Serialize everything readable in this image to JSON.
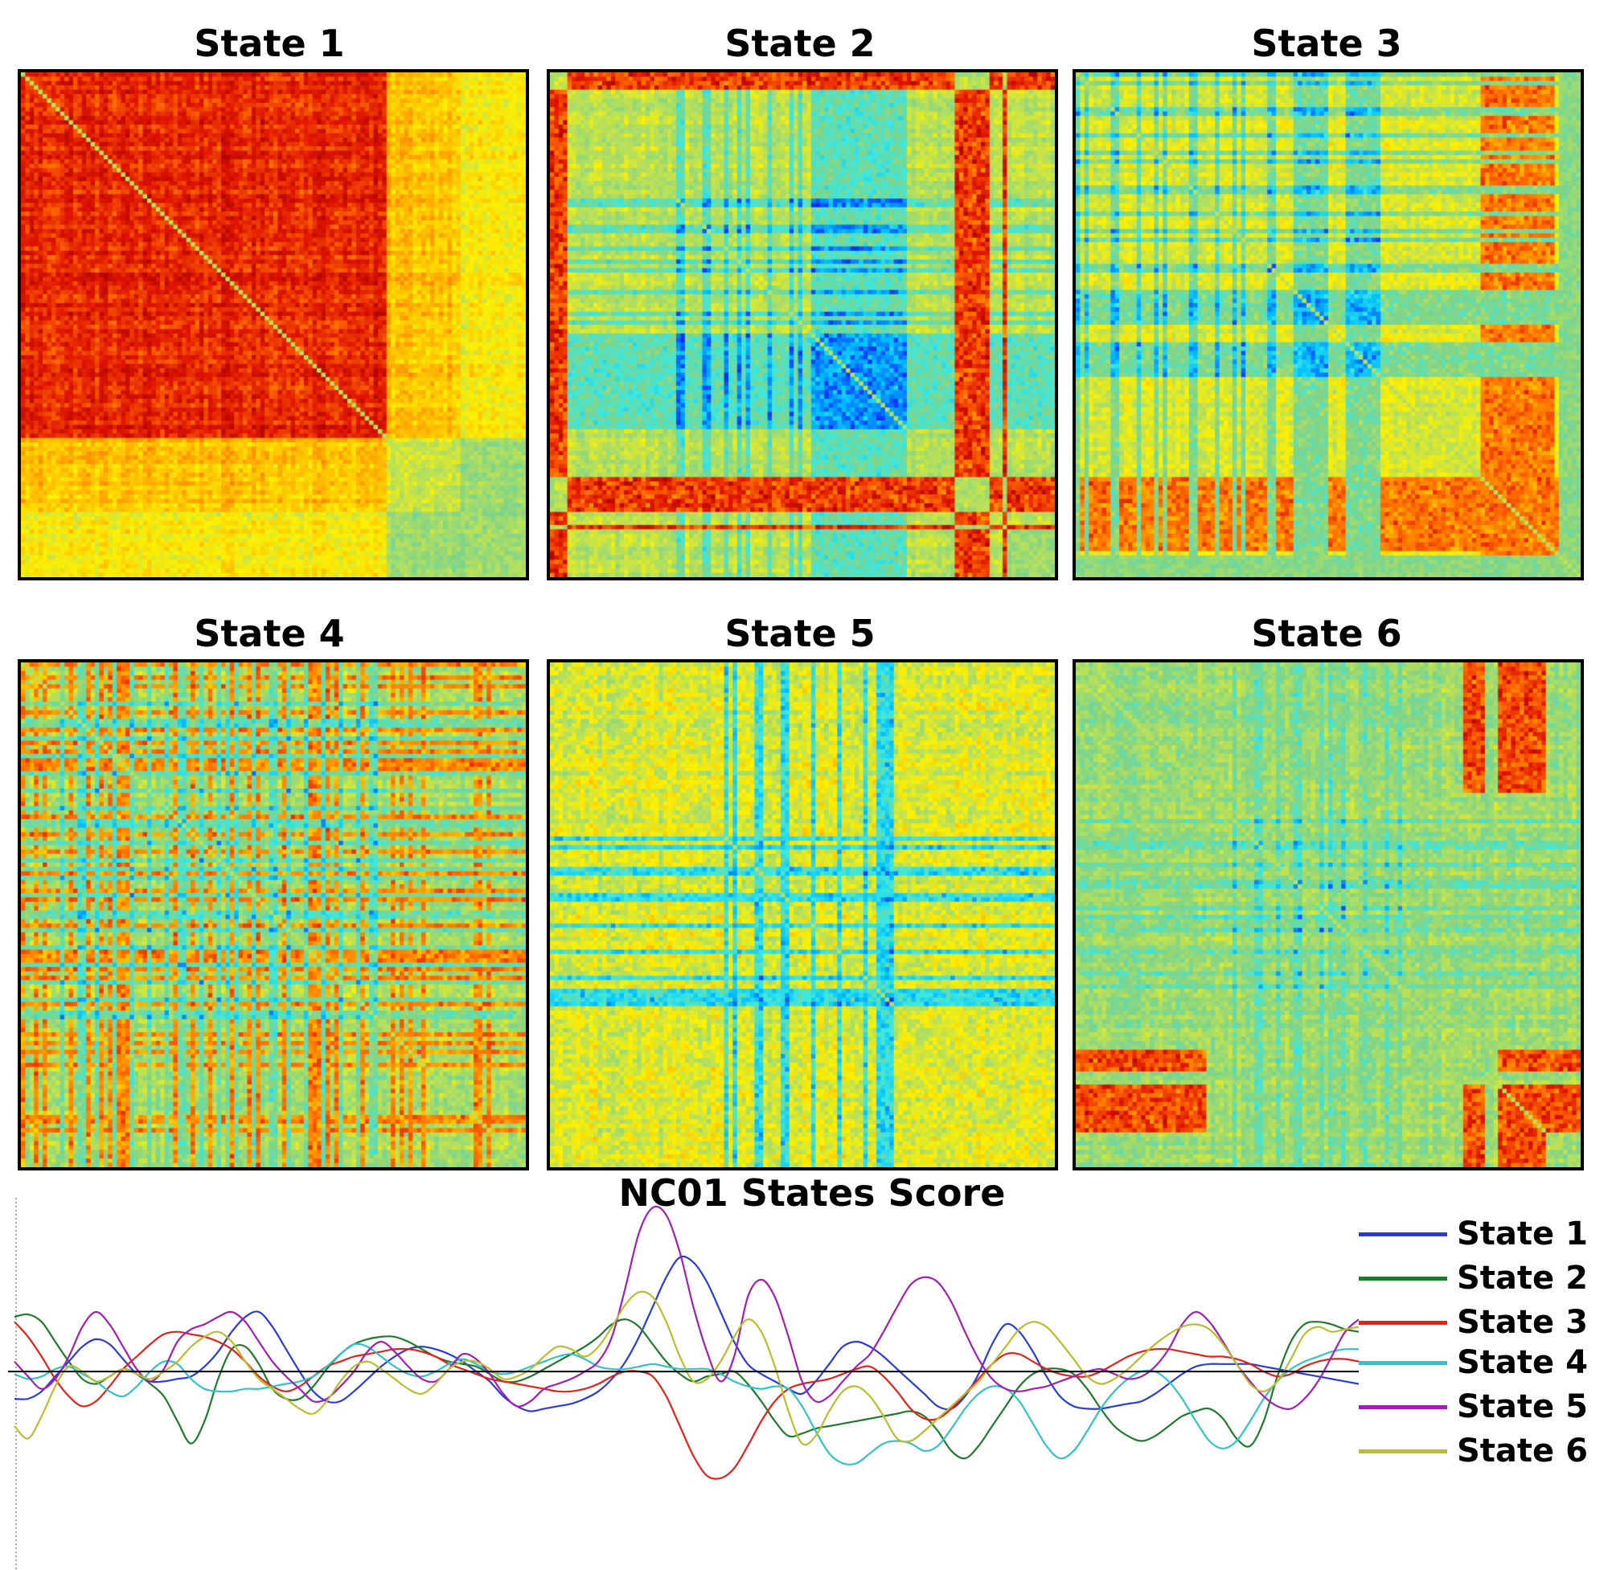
{
  "panels": [
    {
      "title": "State 1",
      "profile": "state1"
    },
    {
      "title": "State 2",
      "profile": "state2"
    },
    {
      "title": "State 3",
      "profile": "state3"
    },
    {
      "title": "State 4",
      "profile": "state4"
    },
    {
      "title": "State 5",
      "profile": "state5"
    },
    {
      "title": "State 6",
      "profile": "state6"
    }
  ],
  "colormap": {
    "stops": [
      "#0000bf",
      "#0a3cff",
      "#00bfff",
      "#3ce8e0",
      "#7fd48a",
      "#b8e05a",
      "#fff000",
      "#ffb400",
      "#ff6a00",
      "#e01400",
      "#a00000"
    ]
  },
  "chart_data": {
    "type": "line",
    "title": "NC01 States Score",
    "xlabel": "",
    "ylabel": "",
    "x_points": 100,
    "ylim": [
      -4.0,
      3.5
    ],
    "baseline": 0,
    "series": [
      {
        "name": "State 1",
        "color": "#2b3bd8",
        "values": [
          -0.55,
          -0.55,
          -0.4,
          -0.1,
          0.2,
          0.5,
          0.65,
          0.55,
          0.25,
          -0.05,
          -0.2,
          -0.2,
          -0.15,
          -0.1,
          0.1,
          0.4,
          0.8,
          1.1,
          1.2,
          0.9,
          0.45,
          0.0,
          -0.4,
          -0.6,
          -0.6,
          -0.4,
          -0.15,
          0.1,
          0.3,
          0.45,
          0.5,
          0.45,
          0.35,
          0.2,
          0.0,
          -0.2,
          -0.5,
          -0.7,
          -0.8,
          -0.75,
          -0.7,
          -0.65,
          -0.55,
          -0.4,
          -0.15,
          0.2,
          0.7,
          1.3,
          1.9,
          2.3,
          2.2,
          1.8,
          1.2,
          0.6,
          0.15,
          -0.05,
          -0.2,
          -0.35,
          -0.45,
          -0.2,
          0.15,
          0.5,
          0.6,
          0.5,
          0.3,
          0.05,
          -0.2,
          -0.45,
          -0.7,
          -0.75,
          -0.5,
          -0.05,
          0.55,
          0.95,
          0.8,
          0.4,
          -0.1,
          -0.5,
          -0.7,
          -0.75,
          -0.75,
          -0.7,
          -0.65,
          -0.6,
          -0.45,
          -0.25,
          -0.05,
          0.1,
          0.15,
          0.15,
          0.15,
          0.15,
          0.1,
          0.05,
          0.0,
          -0.05,
          -0.1,
          -0.15,
          -0.2,
          -0.25
        ]
      },
      {
        "name": "State 2",
        "color": "#1f7a2e",
        "values": [
          1.1,
          1.15,
          1.0,
          0.6,
          0.2,
          -0.15,
          -0.25,
          -0.1,
          0.05,
          -0.05,
          -0.25,
          -0.5,
          -1.0,
          -1.45,
          -1.0,
          -0.15,
          0.45,
          0.5,
          0.15,
          -0.35,
          -0.55,
          -0.55,
          -0.3,
          0.05,
          0.35,
          0.55,
          0.65,
          0.7,
          0.7,
          0.6,
          0.45,
          0.3,
          0.2,
          0.15,
          0.1,
          -0.05,
          -0.2,
          -0.2,
          -0.1,
          0.05,
          0.2,
          0.35,
          0.5,
          0.7,
          0.95,
          1.05,
          0.9,
          0.55,
          0.2,
          -0.05,
          -0.2,
          -0.1,
          -0.05,
          0.0,
          -0.25,
          -0.6,
          -1.0,
          -1.3,
          -1.25,
          -1.15,
          -1.1,
          -1.05,
          -1.0,
          -0.95,
          -0.9,
          -0.85,
          -0.8,
          -0.9,
          -1.2,
          -1.6,
          -1.75,
          -1.5,
          -1.1,
          -0.7,
          -0.3,
          -0.05,
          0.05,
          0.05,
          -0.05,
          -0.35,
          -0.75,
          -1.1,
          -1.3,
          -1.4,
          -1.3,
          -1.1,
          -0.9,
          -0.8,
          -0.75,
          -0.95,
          -1.35,
          -1.5,
          -1.0,
          -0.1,
          0.6,
          0.95,
          1.0,
          0.95,
          0.85,
          0.8
        ]
      },
      {
        "name": "State 3",
        "color": "#e2231a",
        "values": [
          1.0,
          0.7,
          0.3,
          -0.15,
          -0.5,
          -0.7,
          -0.6,
          -0.3,
          0.05,
          0.3,
          0.55,
          0.75,
          0.8,
          0.75,
          0.7,
          0.6,
          0.45,
          0.2,
          -0.1,
          -0.3,
          -0.4,
          -0.3,
          -0.1,
          0.1,
          0.2,
          0.3,
          0.35,
          0.4,
          0.45,
          0.45,
          0.4,
          0.3,
          0.15,
          0.05,
          -0.05,
          -0.15,
          -0.2,
          -0.25,
          -0.3,
          -0.35,
          -0.4,
          -0.4,
          -0.35,
          -0.25,
          -0.1,
          0.0,
          0.0,
          -0.1,
          -0.5,
          -1.1,
          -1.7,
          -2.1,
          -2.15,
          -1.95,
          -1.5,
          -1.0,
          -0.6,
          -0.35,
          -0.25,
          -0.2,
          -0.15,
          -0.05,
          0.05,
          0.1,
          -0.1,
          -0.4,
          -0.75,
          -0.95,
          -0.95,
          -0.75,
          -0.45,
          -0.15,
          0.15,
          0.35,
          0.35,
          0.2,
          0.05,
          -0.05,
          -0.1,
          -0.1,
          0.0,
          0.15,
          0.3,
          0.4,
          0.45,
          0.45,
          0.4,
          0.35,
          0.3,
          0.3,
          0.25,
          0.15,
          0.0,
          -0.1,
          -0.05,
          0.1,
          0.2,
          0.25,
          0.25,
          0.2
        ]
      },
      {
        "name": "State 4",
        "color": "#2ec4c9",
        "values": [
          -0.05,
          -0.15,
          -0.1,
          0.05,
          0.1,
          -0.05,
          -0.2,
          -0.4,
          -0.5,
          -0.3,
          0.0,
          0.2,
          0.15,
          -0.15,
          -0.35,
          -0.4,
          -0.4,
          -0.35,
          -0.35,
          -0.3,
          -0.25,
          -0.2,
          -0.1,
          0.1,
          0.35,
          0.55,
          0.5,
          0.3,
          0.1,
          -0.05,
          -0.1,
          0.0,
          0.15,
          0.25,
          0.15,
          0.0,
          -0.05,
          0.0,
          0.1,
          0.2,
          0.3,
          0.35,
          0.25,
          0.1,
          0.05,
          0.05,
          0.1,
          0.15,
          0.1,
          0.05,
          0.05,
          0.05,
          -0.05,
          -0.2,
          -0.3,
          -0.35,
          -0.3,
          -0.35,
          -0.7,
          -1.2,
          -1.65,
          -1.85,
          -1.85,
          -1.65,
          -1.45,
          -1.4,
          -1.45,
          -1.6,
          -1.5,
          -1.15,
          -0.75,
          -0.45,
          -0.3,
          -0.35,
          -0.6,
          -1.05,
          -1.5,
          -1.75,
          -1.6,
          -1.2,
          -0.75,
          -0.4,
          -0.15,
          0.0,
          0.0,
          -0.2,
          -0.55,
          -1.0,
          -1.4,
          -1.55,
          -1.4,
          -1.0,
          -0.55,
          -0.2,
          0.05,
          0.2,
          0.3,
          0.4,
          0.45,
          0.45
        ]
      },
      {
        "name": "State 5",
        "color": "#a21fb4",
        "values": [
          0.2,
          -0.1,
          -0.35,
          -0.15,
          0.3,
          0.9,
          1.2,
          0.95,
          0.5,
          0.05,
          -0.2,
          0.05,
          0.6,
          0.85,
          0.95,
          1.1,
          1.2,
          1.0,
          0.6,
          0.2,
          -0.1,
          -0.35,
          -0.6,
          -0.55,
          -0.3,
          0.0,
          0.4,
          0.6,
          0.4,
          0.1,
          -0.15,
          -0.2,
          0.05,
          0.35,
          0.25,
          -0.05,
          -0.45,
          -0.7,
          -0.6,
          -0.35,
          -0.25,
          -0.15,
          0.0,
          0.2,
          0.7,
          1.7,
          2.8,
          3.3,
          3.15,
          2.4,
          1.3,
          0.4,
          -0.2,
          0.3,
          1.5,
          1.85,
          1.5,
          0.7,
          -0.2,
          -0.6,
          -0.5,
          -0.2,
          0.1,
          0.35,
          0.8,
          1.3,
          1.75,
          1.9,
          1.8,
          1.4,
          0.8,
          0.25,
          -0.15,
          -0.35,
          -0.4,
          -0.35,
          -0.3,
          -0.2,
          -0.1,
          0.0,
          0.05,
          -0.05,
          -0.15,
          -0.1,
          0.1,
          0.45,
          0.95,
          1.2,
          1.0,
          0.6,
          0.15,
          -0.2,
          -0.5,
          -0.7,
          -0.75,
          -0.55,
          -0.2,
          0.3,
          0.8,
          1.05
        ]
      },
      {
        "name": "State 6",
        "color": "#bcbd2a",
        "values": [
          -1.1,
          -1.35,
          -0.9,
          -0.3,
          0.1,
          0.0,
          -0.2,
          -0.1,
          0.05,
          -0.05,
          -0.15,
          0.0,
          0.2,
          0.5,
          0.7,
          0.8,
          0.6,
          0.2,
          -0.15,
          -0.35,
          -0.55,
          -0.75,
          -0.85,
          -0.6,
          -0.2,
          0.1,
          0.2,
          0.05,
          -0.15,
          -0.35,
          -0.45,
          -0.25,
          0.05,
          0.2,
          0.2,
          0.05,
          -0.15,
          -0.1,
          0.05,
          0.3,
          0.5,
          0.45,
          0.3,
          0.5,
          0.9,
          1.35,
          1.6,
          1.5,
          1.0,
          0.3,
          -0.2,
          -0.15,
          0.2,
          0.7,
          1.05,
          0.8,
          0.1,
          -0.8,
          -1.45,
          -1.3,
          -0.8,
          -0.4,
          -0.3,
          -0.5,
          -0.9,
          -1.35,
          -1.4,
          -1.2,
          -0.95,
          -0.7,
          -0.45,
          -0.2,
          0.15,
          0.5,
          0.85,
          1.0,
          0.9,
          0.6,
          0.25,
          -0.1,
          -0.25,
          -0.15,
          0.05,
          0.3,
          0.55,
          0.75,
          0.9,
          0.95,
          0.85,
          0.55,
          0.15,
          -0.25,
          -0.4,
          -0.2,
          0.25,
          0.75,
          0.9,
          0.8,
          0.85,
          0.9
        ]
      }
    ]
  }
}
